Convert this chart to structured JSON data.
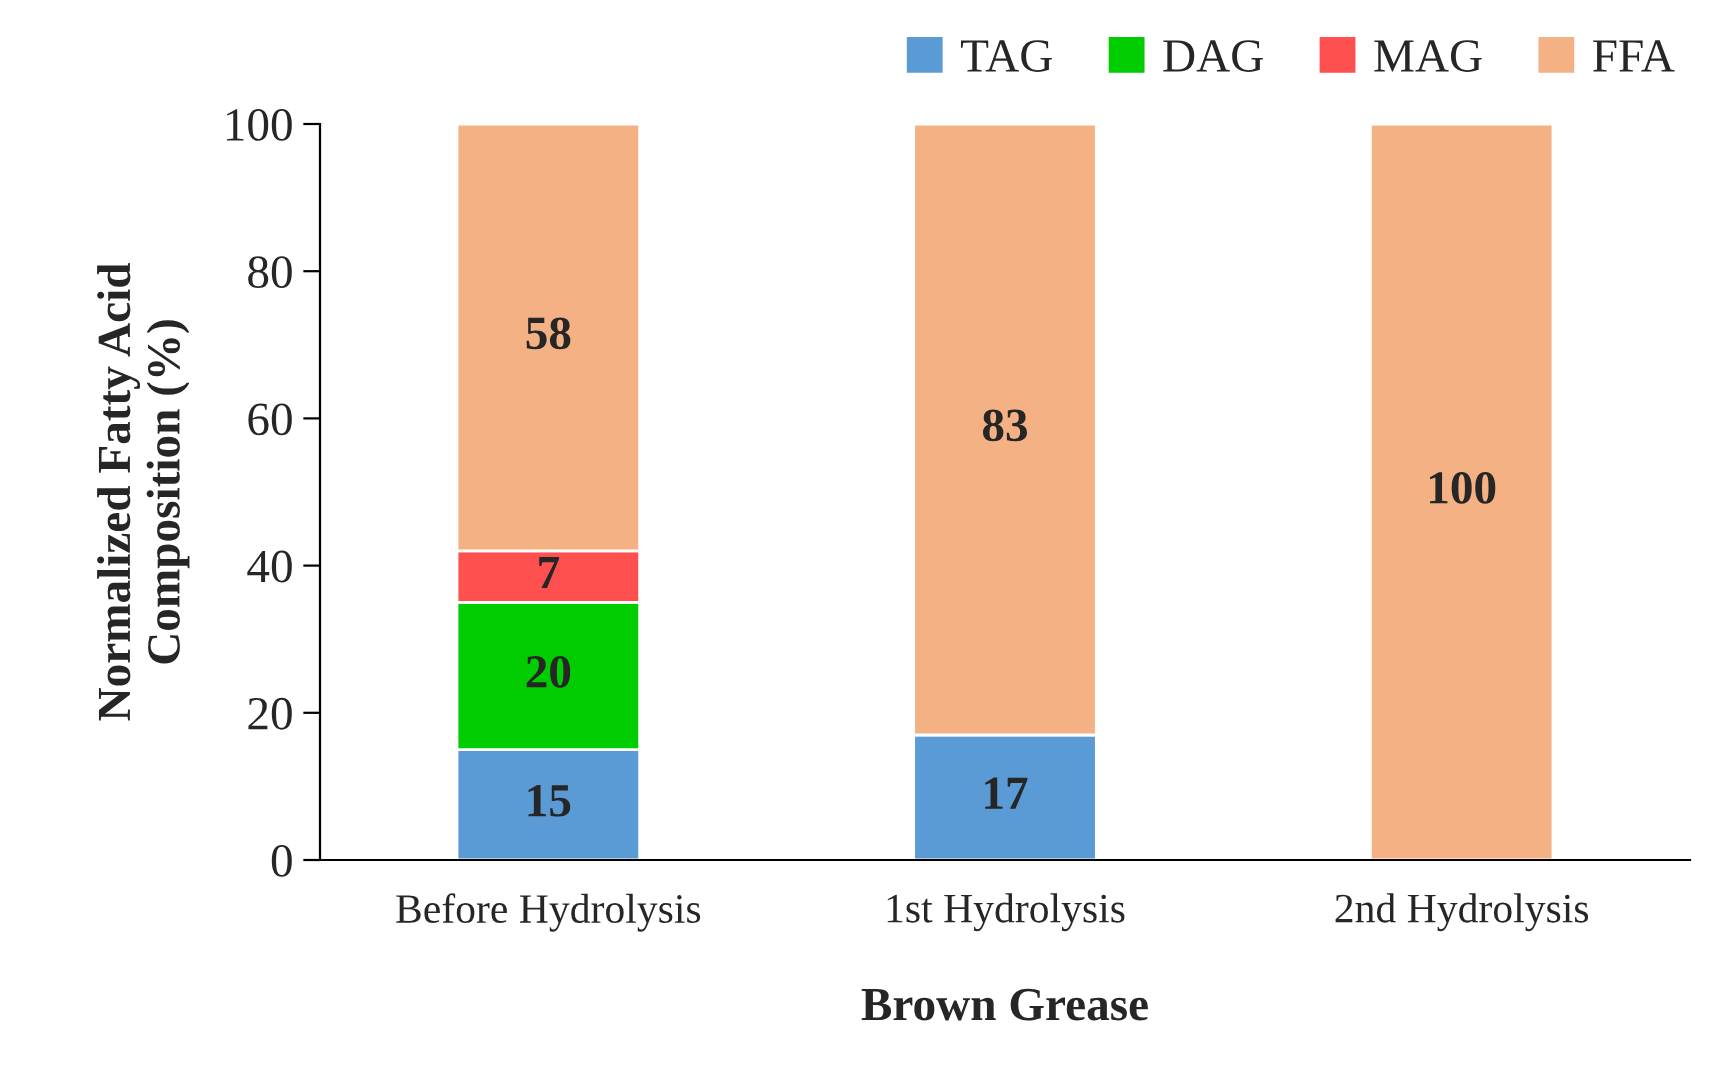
{
  "chart_data": {
    "type": "bar",
    "stacked": true,
    "xlabel": "Brown Grease",
    "ylabel": "Normalized Fatty Acid\nComposition (%)",
    "categories": [
      "Before Hydrolysis",
      "1st Hydrolysis",
      "2nd Hydrolysis"
    ],
    "series": [
      {
        "name": "TAG",
        "color": "#5b9bd5",
        "values": [
          15,
          17,
          null
        ],
        "value_labels": [
          "15",
          "17",
          null
        ]
      },
      {
        "name": "DAG",
        "color": "#00cc00",
        "values": [
          20,
          null,
          null
        ],
        "value_labels": [
          "20",
          null,
          null
        ]
      },
      {
        "name": "MAG",
        "color": "#ff5050",
        "values": [
          7,
          null,
          null
        ],
        "value_labels": [
          "7",
          null,
          null
        ]
      },
      {
        "name": "FFA",
        "color": "#f4b183",
        "values": [
          58,
          83,
          100
        ],
        "value_labels": [
          "58",
          "83",
          "100"
        ]
      }
    ],
    "ylim": [
      0,
      100
    ],
    "yticks": [
      0,
      20,
      40,
      60,
      80,
      100
    ],
    "grid": false,
    "legend": "top right"
  }
}
